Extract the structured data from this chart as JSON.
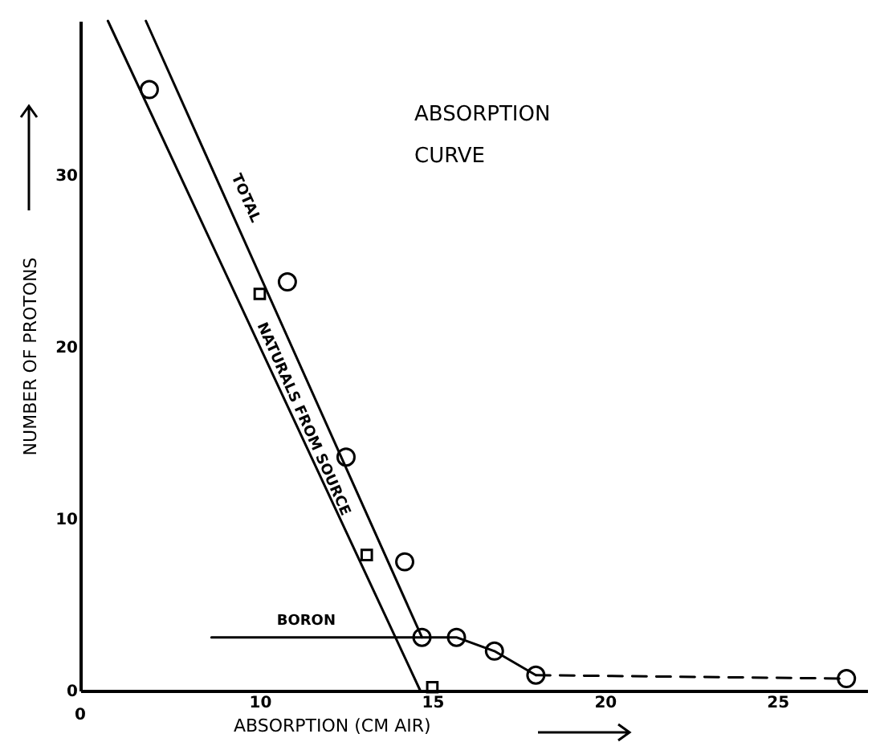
{
  "chart_data": {
    "type": "line",
    "title": "ABSORPTION CURVE",
    "xlabel": "ABSORPTION (CM AIR)",
    "ylabel": "NUMBER OF PROTONS",
    "annotations": [
      "0"
    ],
    "xlim": [
      4.8,
      27.6
    ],
    "xticks": [
      10,
      15,
      20,
      25
    ],
    "ylim": [
      0,
      39
    ],
    "yticks": [
      0,
      10,
      20,
      30
    ],
    "grid": false,
    "legend": false,
    "series": [
      {
        "name": "TOTAL",
        "type": "line",
        "color": "#000000",
        "x": [
          6.7,
          14.7
        ],
        "values": [
          39,
          3.1
        ]
      },
      {
        "name": "NATURALS FROM SOURCE",
        "type": "line",
        "color": "#000000",
        "x": [
          5.6,
          14.65
        ],
        "values": [
          39,
          0
        ]
      },
      {
        "name": "BORON",
        "type": "line",
        "color": "#000000",
        "x": [
          8.6,
          14.7,
          15.7,
          16.8,
          18.0
        ],
        "values": [
          3.1,
          3.1,
          3.1,
          2.3,
          0.9
        ]
      },
      {
        "type": "line",
        "color": "#000000",
        "line_style": "dashed",
        "x": [
          18.0,
          27.0
        ],
        "values": [
          0.9,
          0.7
        ]
      },
      {
        "type": "scatter",
        "color": "#000000",
        "marker": "circle",
        "x": [
          6.8,
          10.8,
          12.5,
          14.2,
          14.7,
          15.7,
          16.8,
          18.0,
          27.0
        ],
        "values": [
          35.0,
          23.8,
          13.6,
          7.5,
          3.1,
          3.1,
          2.3,
          0.9,
          0.7
        ]
      },
      {
        "type": "scatter",
        "color": "#000000",
        "marker": "square",
        "x": [
          10.0,
          13.1,
          15.0
        ],
        "values": [
          23.1,
          7.9,
          0.2
        ]
      }
    ]
  }
}
